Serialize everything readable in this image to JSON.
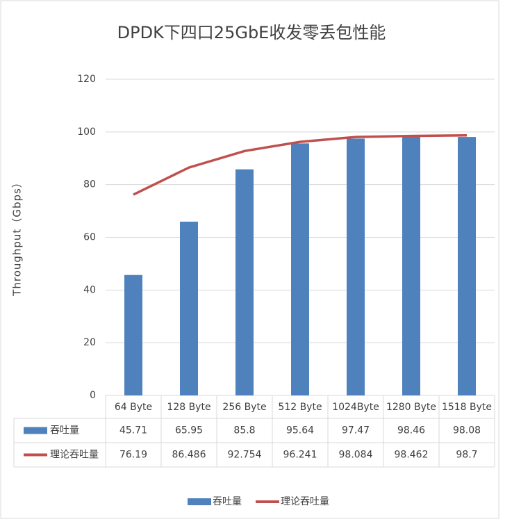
{
  "chart_data": {
    "type": "bar",
    "title": "DPDK下四口25GbE收发零丢包性能",
    "y_label": "Throughput（Gbps）",
    "categories": [
      "64 Byte",
      "128 Byte",
      "256 Byte",
      "512 Byte",
      "1024Byte",
      "1280 Byte",
      "1518 Byte"
    ],
    "series": [
      {
        "name": "吞吐量",
        "type": "bar",
        "color": "#4f81bd",
        "values": [
          45.71,
          65.95,
          85.8,
          95.64,
          97.47,
          98.46,
          98.08
        ]
      },
      {
        "name": "理论吞吐量",
        "type": "line",
        "color": "#c0504d",
        "values": [
          76.19,
          86.486,
          92.754,
          96.241,
          98.084,
          98.462,
          98.7
        ]
      }
    ],
    "ylim": [
      0,
      120
    ],
    "yticks": [
      0,
      20,
      40,
      60,
      80,
      100,
      120
    ],
    "grid": true,
    "legend": "bottom",
    "data_table": true
  }
}
